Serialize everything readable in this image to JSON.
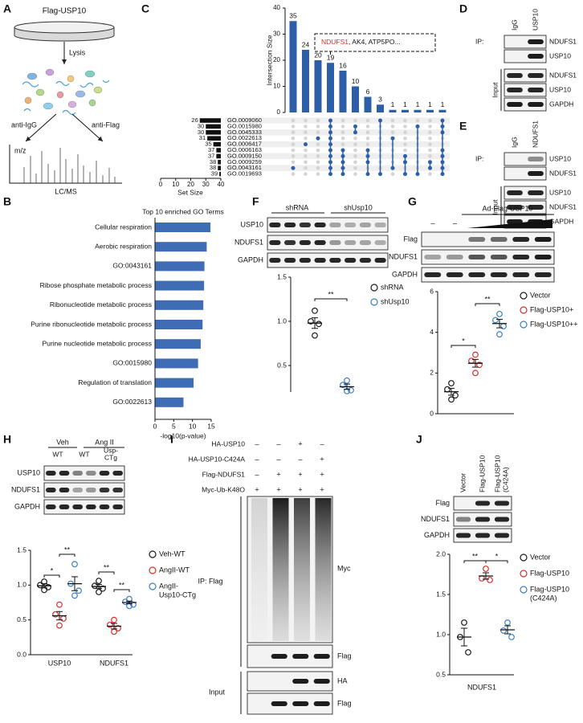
{
  "figure": {
    "A": {
      "label": "A",
      "dish": "Flag-USP10",
      "step": "Lysis",
      "left_arm": "anti-IgG",
      "right_arm": "anti-Flag",
      "axis": "m/z",
      "method": "LC/MS"
    },
    "C": {
      "label": "C",
      "chart": {
        "type": "upset",
        "y_label": "Intersection Size",
        "values": [
          35,
          24,
          20,
          19,
          16,
          10,
          6,
          3,
          1,
          1,
          1,
          1,
          1
        ],
        "ylim": [
          0,
          40
        ],
        "yticks": [
          0,
          10,
          20,
          30,
          40
        ],
        "color": "#2d5fa8",
        "sets": [
          "GO.0009060",
          "GO.0015980",
          "GO.0045333",
          "GO.0022613",
          "GO.0006417",
          "GO.0006163",
          "GO.0009150",
          "GO.0009259",
          "GO.0043161",
          "GO.0019693"
        ],
        "set_sizes": [
          26,
          30,
          30,
          31,
          35,
          37,
          37,
          38,
          38,
          39
        ],
        "xlim": [
          0,
          40
        ],
        "xticks": [
          40,
          30,
          20,
          10,
          0
        ],
        "x_label": "Set Size",
        "memberships": [
          [
            8
          ],
          [
            4
          ],
          [
            3
          ],
          [
            0,
            1,
            2,
            3,
            4,
            5,
            6,
            7,
            8,
            9
          ],
          [
            5,
            6,
            7,
            8,
            9
          ],
          [
            1,
            2
          ],
          [
            5,
            6,
            7,
            9
          ],
          [
            0,
            9
          ],
          [
            3,
            8
          ],
          [
            6,
            7,
            9
          ],
          [
            1,
            9
          ],
          [
            7,
            8
          ],
          [
            0,
            1,
            2,
            5,
            6,
            7,
            8,
            9
          ]
        ],
        "annotation": {
          "highlight": "NDUFS1",
          "rest": ", AK4, ATP5PO..."
        }
      }
    },
    "D": {
      "label": "D",
      "ip": "IP:",
      "lanes": [
        "IgG",
        "USP10"
      ],
      "ip_rows": [
        "NDUFS1",
        "USP10"
      ],
      "input": "Input",
      "input_rows": [
        "NDUFS1",
        "USP10",
        "GAPDH"
      ]
    },
    "E": {
      "label": "E",
      "ip": "IP:",
      "lanes": [
        "IgG",
        "NDUFS1"
      ],
      "ip_rows": [
        "USP10",
        "NDUFS1"
      ],
      "input": "Input",
      "input_rows": [
        "USP10",
        "NDUFS1",
        "GAPDH"
      ]
    },
    "B": {
      "label": "B",
      "chart": {
        "type": "barh",
        "title": "Top 10 enriched GO Terms",
        "categories": [
          "Cellular respiration",
          "Aerobic respiration",
          "GO:0043161",
          "Ribose phosphate metabolic process",
          "Ribonucleotide metabolic process",
          "Purine ribonucleotide metabolic process",
          "Purine nucleotide metabolic process",
          "GO:0015980",
          "Regulation of translation",
          "GO:0022613"
        ],
        "values": [
          14.8,
          13.8,
          13.2,
          13.1,
          12.9,
          12.7,
          12.2,
          11.5,
          10.3,
          7.6
        ],
        "xlim": [
          0,
          15
        ],
        "xticks": [
          0,
          5,
          10,
          15
        ],
        "x_label": "-log10(p-value)",
        "color": "#3e6db5"
      }
    },
    "F": {
      "label": "F",
      "blot": {
        "groups": [
          "shRNA",
          "shUsp10"
        ],
        "rows": [
          "USP10",
          "NDUFS1",
          "GAPDH"
        ]
      },
      "chart": {
        "type": "dot",
        "ylim": [
          0.2,
          1.5
        ],
        "yticks": [
          0.5,
          {
            "value": 1,
            "label": "1.0"
          },
          1.5
        ],
        "series": [
          {
            "name": "shRNA",
            "color": "#1a1a1a",
            "values": [
              1.12,
              1.0,
              0.97,
              0.84
            ],
            "mean": 0.98,
            "error": 0.06
          },
          {
            "name": "shUsp10",
            "color": "#3b7fc4",
            "values": [
              0.33,
              0.28,
              0.22,
              0.21
            ],
            "mean": 0.26,
            "error": 0.03
          }
        ],
        "significance": [
          "**"
        ]
      }
    },
    "G": {
      "label": "G",
      "blot": {
        "header": "Ad-Flag-USP10",
        "lanes": [
          "–",
          "–"
        ],
        "rows": [
          "Flag",
          "NDUFS1",
          "GAPDH"
        ]
      },
      "chart": {
        "type": "dot",
        "ylim": [
          0,
          6
        ],
        "yticks": [
          0,
          2,
          4,
          6
        ],
        "series": [
          {
            "name": "Vector",
            "color": "#1a1a1a",
            "values": [
              1.5,
              1.2,
              0.9,
              0.7
            ],
            "mean": 1.08,
            "error": 0.17
          },
          {
            "name": "Flag-USP10+",
            "color": "#d9302c",
            "values": [
              2.9,
              2.6,
              2.4,
              2.0
            ],
            "mean": 2.48,
            "error": 0.19
          },
          {
            "name": "Flag-USP10++",
            "color": "#3b7fc4",
            "values": [
              4.9,
              4.6,
              4.3,
              3.9
            ],
            "mean": 4.43,
            "error": 0.21
          }
        ],
        "significance": [
          "*",
          "**"
        ]
      }
    },
    "H": {
      "label": "H",
      "blot": {
        "groups": [
          "Veh",
          "Ang II"
        ],
        "lanes": [
          [
            "WT"
          ],
          [
            "WT"
          ],
          [
            "Usp-",
            "CTg"
          ]
        ],
        "rows": [
          "USP10",
          "NDUFS1",
          "GAPDH"
        ]
      },
      "chart": {
        "type": "dot",
        "categories": [
          "USP10",
          "NDUFS1"
        ],
        "ylim": [
          0,
          1.5
        ],
        "yticks": [
          {
            "value": 0,
            "label": "0.0"
          },
          0.5,
          {
            "value": 1,
            "label": "1.0"
          },
          1.5
        ],
        "series": [
          {
            "name": [
              "Veh-WT"
            ],
            "color": "#1a1a1a",
            "values": [
              [
                1.05,
                1.0,
                0.97,
                0.93
              ],
              [
                1.06,
                0.99,
                0.95,
                0.9
              ]
            ],
            "mean": [
              0.99,
              0.98
            ],
            "error": [
              0.03,
              0.03
            ]
          },
          {
            "name": [
              "AngII-WT"
            ],
            "color": "#d9302c",
            "values": [
              [
                0.72,
                0.58,
                0.52,
                0.42
              ],
              [
                0.5,
                0.43,
                0.38,
                0.33
              ]
            ],
            "mean": [
              0.56,
              0.41
            ],
            "error": [
              0.06,
              0.04
            ]
          },
          {
            "name": [
              "AngII-",
              "Usp10-CTg"
            ],
            "color": "#3b7fc4",
            "values": [
              [
                1.3,
                1.02,
                0.92,
                0.85
              ],
              [
                0.8,
                0.76,
                0.72,
                0.7
              ]
            ],
            "mean": [
              1.02,
              0.75
            ],
            "error": [
              0.1,
              0.02
            ]
          }
        ],
        "significance": [
          "*",
          "**",
          "**",
          "**"
        ]
      }
    },
    "I": {
      "label": "I",
      "conditions": [
        {
          "label": "HA-USP10",
          "signs": [
            "–",
            "–",
            "+",
            "–"
          ]
        },
        {
          "label": "HA-USP10-C424A",
          "signs": [
            "–",
            "–",
            "–",
            "+"
          ]
        },
        {
          "label": "Flag-NDUFS1",
          "signs": [
            "–",
            "+",
            "+",
            "+"
          ]
        },
        {
          "label": "Myc-Ub-K48O",
          "signs": [
            "+",
            "+",
            "+",
            "+"
          ]
        }
      ],
      "ip": "IP: Flag",
      "ip_rows": [
        "Myc",
        "Flag"
      ],
      "input": "Input",
      "input_rows": [
        "HA",
        "Flag"
      ]
    },
    "J": {
      "label": "J",
      "blot": {
        "lanes": [
          [
            "Vector"
          ],
          [
            "Flag-USP10"
          ],
          [
            "Flag-USP10",
            "(C424A)"
          ]
        ],
        "rows": [
          "Flag",
          "NDUFS1",
          "GAPDH"
        ]
      },
      "chart": {
        "type": "dot",
        "x_label": "NDUFS1",
        "ylim": [
          0.5,
          2
        ],
        "yticks": [
          0.5,
          {
            "value": 1,
            "label": "1.0"
          },
          1.5,
          {
            "value": 2,
            "label": "2.0"
          }
        ],
        "series": [
          {
            "name": [
              "Vector"
            ],
            "color": "#1a1a1a",
            "values": [
              1.15,
              0.97,
              0.78
            ],
            "mean": 0.97,
            "error": 0.11
          },
          {
            "name": [
              "Flag-USP10"
            ],
            "color": "#d9302c",
            "values": [
              1.82,
              1.7,
              1.68
            ],
            "mean": 1.73,
            "error": 0.04
          },
          {
            "name": [
              "Flag-USP10",
              "(C424A)"
            ],
            "color": "#3b7fc4",
            "values": [
              1.15,
              1.05,
              0.97
            ],
            "mean": 1.06,
            "error": 0.05
          }
        ],
        "significance": [
          "**",
          "*"
        ]
      }
    }
  }
}
